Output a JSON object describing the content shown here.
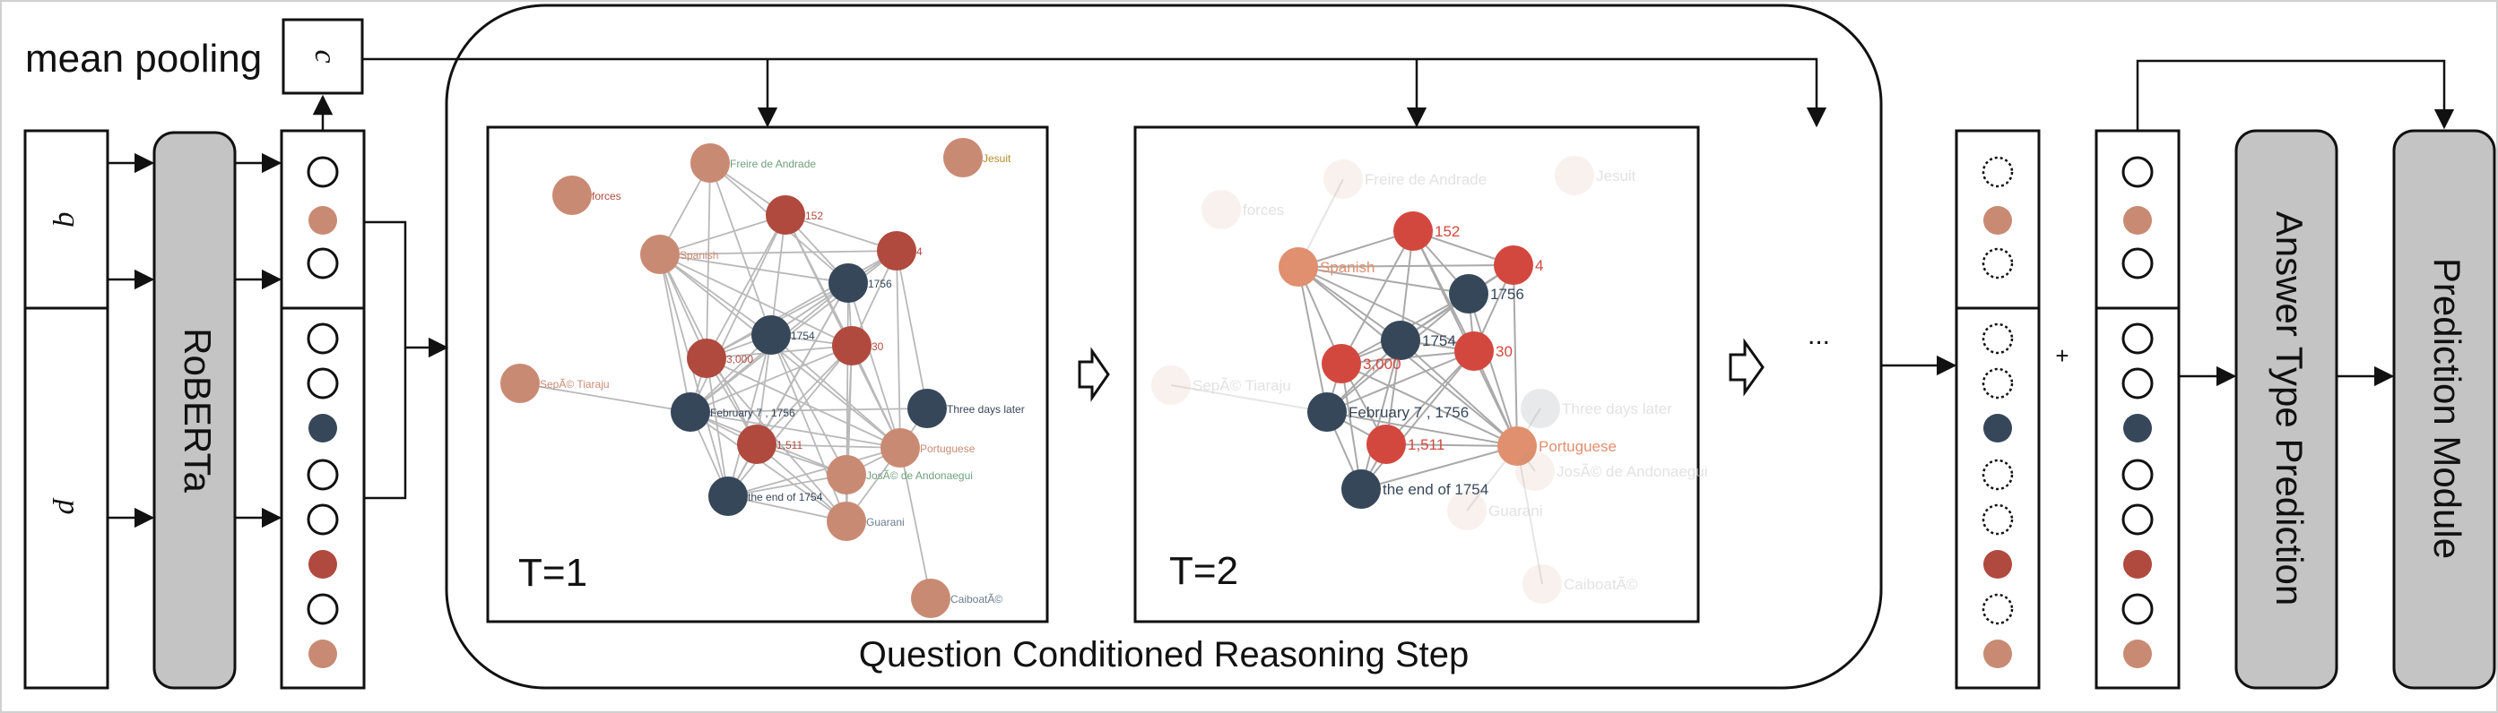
{
  "colors": {
    "dark": "#36475a",
    "red": "#b04a3e",
    "salmon": "#c98a73",
    "lightsalmon": "#e0906f",
    "brightred": "#d2483f",
    "gray_box": "#c4c4c4",
    "frame": "#222222"
  },
  "labels": {
    "mean_pooling": "mean pooling",
    "c": "c",
    "q": "q",
    "p": "p",
    "roberta": "RoBERTa",
    "t1": "T=1",
    "t2": "T=2",
    "reasoning_step": "Question Conditioned Reasoning Step",
    "ellipsis": "...",
    "plus": "+",
    "answer_type_prediction": "Answer Type Prediction",
    "prediction_module": "Prediction Module"
  },
  "graph1": {
    "nodes": [
      {
        "id": "freire",
        "label": "Freire de Andrade",
        "color": "salmon",
        "label_color": "#6f9f7c"
      },
      {
        "id": "jesuit",
        "label": "Jesuit",
        "color": "salmon",
        "label_color": "#b58a2a"
      },
      {
        "id": "forces",
        "label": "forces",
        "color": "salmon",
        "label_color": "#b04a3e"
      },
      {
        "id": "n152",
        "label": "152",
        "color": "red",
        "label_color": "#b04a3e"
      },
      {
        "id": "spanish",
        "label": "Spanish",
        "color": "salmon",
        "label_color": "#c98a73"
      },
      {
        "id": "n4",
        "label": "4",
        "color": "red",
        "label_color": "#b04a3e"
      },
      {
        "id": "n1756",
        "label": "1756",
        "color": "dark",
        "label_color": "#36475a"
      },
      {
        "id": "n1754",
        "label": "1754",
        "color": "dark",
        "label_color": "#36475a"
      },
      {
        "id": "n30",
        "label": "30",
        "color": "red",
        "label_color": "#b04a3e"
      },
      {
        "id": "n3000",
        "label": "3,000",
        "color": "red",
        "label_color": "#b04a3e"
      },
      {
        "id": "sepe",
        "label": "SepÃ© Tiaraju",
        "color": "salmon",
        "label_color": "#c98a73"
      },
      {
        "id": "feb",
        "label": "February 7 , 1756",
        "color": "dark",
        "label_color": "#36475a"
      },
      {
        "id": "three",
        "label": "Three days later",
        "color": "dark",
        "label_color": "#36475a"
      },
      {
        "id": "n1511",
        "label": "1,511",
        "color": "red",
        "label_color": "#b04a3e"
      },
      {
        "id": "portuguese",
        "label": "Portuguese",
        "color": "salmon",
        "label_color": "#c98a73"
      },
      {
        "id": "jose",
        "label": "JosÃ© de Andonaegui",
        "color": "salmon",
        "label_color": "#6f9f7c"
      },
      {
        "id": "end1754",
        "label": "the end of 1754",
        "color": "dark",
        "label_color": "#36475a"
      },
      {
        "id": "guarani",
        "label": "Guarani",
        "color": "salmon",
        "label_color": "#6a7d8f"
      },
      {
        "id": "caiboate",
        "label": "CaiboatÃ©",
        "color": "salmon",
        "label_color": "#6a7d8f"
      }
    ]
  },
  "graph2": {
    "nodes": [
      {
        "id": "spanish",
        "label": "Spanish",
        "color": "lightsalmon",
        "faded": false
      },
      {
        "id": "n152",
        "label": "152",
        "color": "brightred",
        "faded": false
      },
      {
        "id": "n4",
        "label": "4",
        "color": "brightred",
        "faded": false
      },
      {
        "id": "n1756",
        "label": "1756",
        "color": "dark",
        "faded": false
      },
      {
        "id": "n1754",
        "label": "1754",
        "color": "dark",
        "faded": false
      },
      {
        "id": "n30",
        "label": "30",
        "color": "brightred",
        "faded": false
      },
      {
        "id": "n3000",
        "label": "3,000",
        "color": "brightred",
        "faded": false
      },
      {
        "id": "feb",
        "label": "February 7 , 1756",
        "color": "dark",
        "faded": false
      },
      {
        "id": "n1511",
        "label": "1,511",
        "color": "brightred",
        "faded": false
      },
      {
        "id": "portuguese",
        "label": "Portuguese",
        "color": "lightsalmon",
        "faded": false
      },
      {
        "id": "end1754",
        "label": "the end of 1754",
        "color": "dark",
        "faded": false
      },
      {
        "id": "forces",
        "label": "forces",
        "color": "salmon",
        "faded": true
      },
      {
        "id": "freire",
        "label": "Freire de Andrade",
        "color": "salmon",
        "faded": true
      },
      {
        "id": "jesuit",
        "label": "Jesuit",
        "color": "salmon",
        "faded": true
      },
      {
        "id": "sepe",
        "label": "SepÃ© Tiaraju",
        "color": "salmon",
        "faded": true
      },
      {
        "id": "three",
        "label": "Three days later",
        "color": "dark",
        "faded": true
      },
      {
        "id": "jose",
        "label": "JosÃ© de Andonaegui",
        "color": "salmon",
        "faded": true
      },
      {
        "id": "guarani",
        "label": "Guarani",
        "color": "salmon",
        "faded": true
      },
      {
        "id": "caiboate",
        "label": "CaiboatÃ©",
        "color": "salmon",
        "faded": true
      }
    ]
  },
  "columns": {
    "encoder_top": [
      "empty",
      "salmon",
      "empty"
    ],
    "encoder_bottom": [
      "empty",
      "empty",
      "dark",
      "empty",
      "empty",
      "red",
      "empty",
      "salmon"
    ],
    "output_top": [
      "dotted",
      "salmon",
      "dotted"
    ],
    "output_bottom": [
      "dotted",
      "dotted",
      "dark",
      "dotted",
      "dotted",
      "red",
      "dotted",
      "salmon"
    ],
    "final_top": [
      "empty",
      "salmon",
      "empty"
    ],
    "final_bottom": [
      "empty",
      "empty",
      "dark",
      "empty",
      "empty",
      "red",
      "empty",
      "salmon"
    ]
  }
}
